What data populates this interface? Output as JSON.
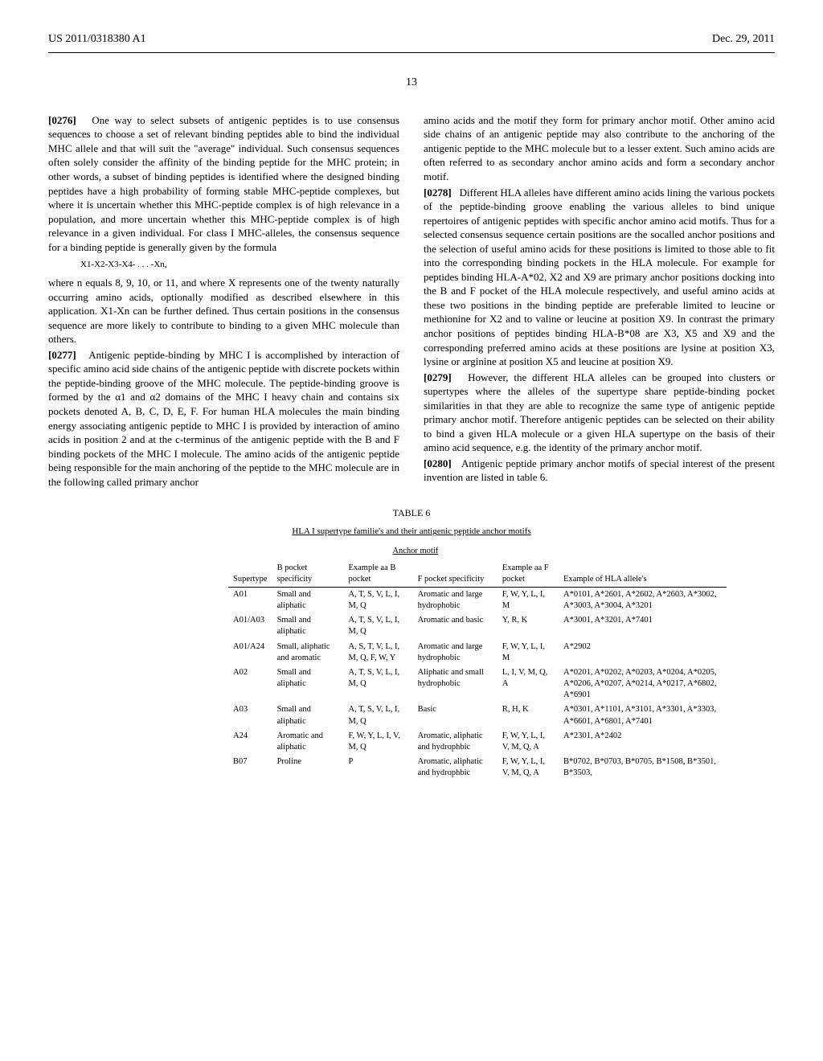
{
  "header": {
    "left": "US 2011/0318380 A1",
    "right": "Dec. 29, 2011"
  },
  "page_number": "13",
  "left_column": {
    "p0276_num": "[0276]",
    "p0276": "One way to select subsets of antigenic peptides is to use consensus sequences to choose a set of relevant binding peptides able to bind the individual MHC allele and that will suit the \"average\" individual. Such consensus sequences often solely consider the affinity of the binding peptide for the MHC protein; in other words, a subset of binding peptides is identified where the designed binding peptides have a high probability of forming stable MHC-peptide complexes, but where it is uncertain whether this MHC-peptide complex is of high relevance in a population, and more uncertain whether this MHC-peptide complex is of high relevance in a given individual. For class I MHC-alleles, the consensus sequence for a binding peptide is generally given by the formula",
    "formula": "X1-X2-X3-X4- . . . -Xn,",
    "p0276b": "where n equals 8, 9, 10, or 11, and where X represents one of the twenty naturally occurring amino acids, optionally modified as described elsewhere in this application. X1-Xn can be further defined. Thus certain positions in the consensus sequence are more likely to contribute to binding to a given MHC molecule than others.",
    "p0277_num": "[0277]",
    "p0277": "Antigenic peptide-binding by MHC I is accomplished by interaction of specific amino acid side chains of the antigenic peptide with discrete pockets within the peptide-binding groove of the MHC molecule. The peptide-binding groove is formed by the α1 and α2 domains of the MHC I heavy chain and contains six pockets denoted A, B, C, D, E, F. For human HLA molecules the main binding energy associating antigenic peptide to MHC I is provided by interaction of amino acids in position 2 and at the c-terminus of the antigenic peptide with the B and F binding pockets of the MHC I molecule. The amino acids of the antigenic peptide being responsible for the main anchoring of the peptide to the MHC molecule are in the following called primary anchor"
  },
  "right_column": {
    "p0277c": "amino acids and the motif they form for primary anchor motif. Other amino acid side chains of an antigenic peptide may also contribute to the anchoring of the antigenic peptide to the MHC molecule but to a lesser extent. Such amino acids are often referred to as secondary anchor amino acids and form a secondary anchor motif.",
    "p0278_num": "[0278]",
    "p0278": "Different HLA alleles have different amino acids lining the various pockets of the peptide-binding groove enabling the various alleles to bind unique repertoires of antigenic peptides with specific anchor amino acid motifs. Thus for a selected consensus sequence certain positions are the socalled anchor positions and the selection of useful amino acids for these positions is limited to those able to fit into the corresponding binding pockets in the HLA molecule. For example for peptides binding HLA-A*02, X2 and X9 are primary anchor positions docking into the B and F pocket of the HLA molecule respectively, and useful amino acids at these two positions in the binding peptide are preferable limited to leucine or methionine for X2 and to valine or leucine at position X9. In contrast the primary anchor positions of peptides binding HLA-B*08 are X3, X5 and X9 and the corresponding preferred amino acids at these positions are lysine at position X3, lysine or arginine at position X5 and leucine at position X9.",
    "p0279_num": "[0279]",
    "p0279": "However, the different HLA alleles can be grouped into clusters or supertypes where the alleles of the supertype share peptide-binding pocket similarities in that they are able to recognize the same type of antigenic peptide primary anchor motif. Therefore antigenic peptides can be selected on their ability to bind a given HLA molecule or a given HLA supertype on the basis of their amino acid sequence, e.g. the identity of the primary anchor motif.",
    "p0280_num": "[0280]",
    "p0280": "Antigenic peptide primary anchor motifs of special interest of the present invention are listed in table 6."
  },
  "table": {
    "label": "TABLE 6",
    "caption": "HLA I supertype familie's and their antigenic peptide anchor motifs",
    "anchor_header": "Anchor motif",
    "headers": {
      "super": "Supertype",
      "bspec": "B pocket specificity",
      "exb": "Example aa B pocket",
      "fspec": "F pocket specificity",
      "exf": "Example aa F pocket",
      "hla": "Example of HLA allele's"
    },
    "rows": [
      {
        "super": "A01",
        "bspec": "Small and aliphatic",
        "exb": "A, T, S, V, L, I, M, Q",
        "fspec": "Aromatic and large hydrophobic",
        "exf": "F, W, Y, L, I, M",
        "hla": "A*0101, A*2601, A*2602, A*2603, A*3002, A*3003, A*3004, A*3201"
      },
      {
        "super": "A01/A03",
        "bspec": "Small and aliphatic",
        "exb": "A, T, S, V, L, I, M, Q",
        "fspec": "Aromatic and basic",
        "exf": "Y, R, K",
        "hla": "A*3001, A*3201, A*7401"
      },
      {
        "super": "A01/A24",
        "bspec": "Small, aliphatic and aromatic",
        "exb": "A, S, T, V, L, I, M, Q, F, W, Y",
        "fspec": "Aromatic and large hydrophobic",
        "exf": "F, W, Y, L, I, M",
        "hla": "A*2902"
      },
      {
        "super": "A02",
        "bspec": "Small and aliphatic",
        "exb": "A, T, S, V, L, I, M, Q",
        "fspec": "Aliphatic and small hydrophobic",
        "exf": "L, I, V, M, Q, A",
        "hla": "A*0201, A*0202, A*0203, A*0204, A*0205, A*0206, A*0207, A*0214, A*0217, A*6802, A*6901"
      },
      {
        "super": "A03",
        "bspec": "Small and aliphatic",
        "exb": "A, T, S, V, L, I, M, Q",
        "fspec": "Basic",
        "exf": "R, H, K",
        "hla": "A*0301, A*1101, A*3101, A*3301, A*3303, A*6601, A*6801, A*7401"
      },
      {
        "super": "A24",
        "bspec": "Aromatic and aliphatic",
        "exb": "F, W, Y, L, I, V, M, Q",
        "fspec": "Aromatic, aliphatic and hydrophbic",
        "exf": "F, W, Y, L, I, V, M, Q, A",
        "hla": "A*2301, A*2402"
      },
      {
        "super": "B07",
        "bspec": "Proline",
        "exb": "P",
        "fspec": "Aromatic, aliphatic and hydrophbic",
        "exf": "F, W, Y, L, I, V, M, Q, A",
        "hla": "B*0702, B*0703, B*0705, B*1508, B*3501, B*3503,"
      }
    ]
  }
}
